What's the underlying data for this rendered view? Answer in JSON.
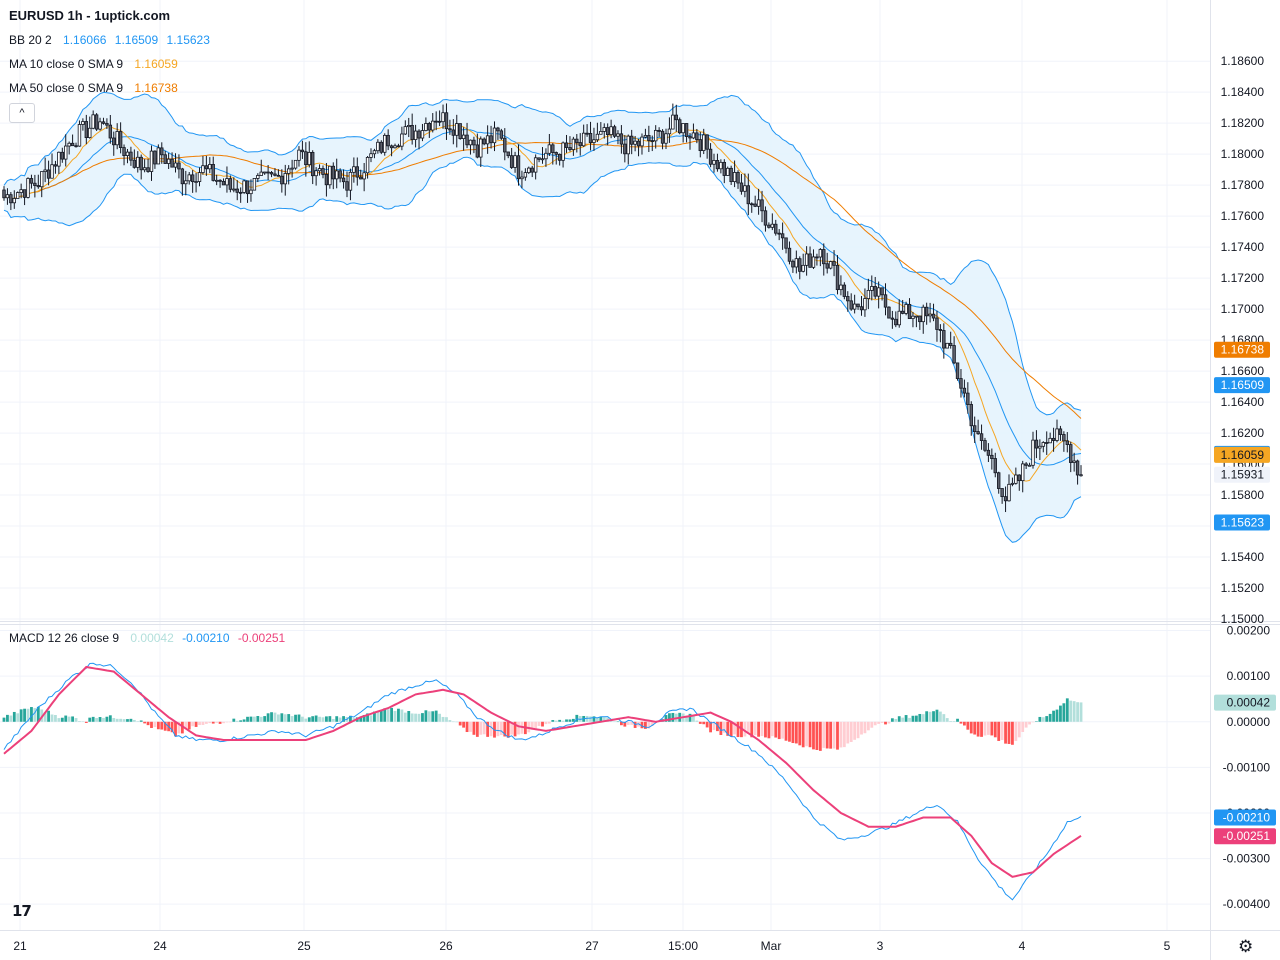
{
  "header": {
    "title": "EURUSD 1h - 1uptick.com"
  },
  "legends": {
    "bb": {
      "label": "BB 20 2",
      "v1": "1.16066",
      "v2": "1.16509",
      "v3": "1.15623",
      "color": "#2196f3"
    },
    "ma10": {
      "label": "MA 10 close 0 SMA 9",
      "value": "1.16059",
      "color": "#f5a623"
    },
    "ma50": {
      "label": "MA 50 close 0 SMA 9",
      "value": "1.16738",
      "color": "#ef7d00"
    },
    "macd": {
      "label": "MACD 12 26 close 9",
      "hist": "0.00042",
      "macd": "-0.00210",
      "signal": "-0.00251"
    }
  },
  "ui": {
    "collapse_icon": "^",
    "logo_text": "17",
    "settings_icon": "⚙"
  },
  "chart_data": [
    {
      "type": "candlestick",
      "symbol": "EURUSD",
      "interval": "1h",
      "ylim": [
        1.15,
        1.187
      ],
      "y_ticks": [
        "1.18600",
        "1.18400",
        "1.18200",
        "1.18000",
        "1.17800",
        "1.17600",
        "1.17400",
        "1.17200",
        "1.17000",
        "1.16800",
        "1.16600",
        "1.16400",
        "1.16200",
        "1.16000",
        "1.15800",
        "1.15600",
        "1.15400",
        "1.15200",
        "1.15000"
      ],
      "x_labels": [
        "21",
        "24",
        "25",
        "26",
        "27",
        "15:00",
        "Mar",
        "3",
        "4",
        "5"
      ],
      "price_key_points": [
        [
          0,
          1.1772
        ],
        [
          10,
          1.1782
        ],
        [
          20,
          1.181
        ],
        [
          28,
          1.1822
        ],
        [
          34,
          1.1805
        ],
        [
          40,
          1.1792
        ],
        [
          46,
          1.18
        ],
        [
          52,
          1.1786
        ],
        [
          58,
          1.179
        ],
        [
          66,
          1.1778
        ],
        [
          72,
          1.178
        ],
        [
          80,
          1.1785
        ],
        [
          86,
          1.18
        ],
        [
          94,
          1.1786
        ],
        [
          100,
          1.1782
        ],
        [
          106,
          1.1795
        ],
        [
          112,
          1.181
        ],
        [
          120,
          1.1815
        ],
        [
          126,
          1.1825
        ],
        [
          132,
          1.1818
        ],
        [
          138,
          1.1805
        ],
        [
          144,
          1.1812
        ],
        [
          150,
          1.179
        ],
        [
          158,
          1.18
        ],
        [
          164,
          1.1802
        ],
        [
          170,
          1.1808
        ],
        [
          176,
          1.1812
        ],
        [
          182,
          1.1805
        ],
        [
          190,
          1.181
        ],
        [
          196,
          1.182
        ],
        [
          202,
          1.1812
        ],
        [
          206,
          1.18
        ],
        [
          210,
          1.179
        ],
        [
          216,
          1.1775
        ],
        [
          220,
          1.1765
        ],
        [
          226,
          1.175
        ],
        [
          232,
          1.1725
        ],
        [
          238,
          1.174
        ],
        [
          244,
          1.1715
        ],
        [
          248,
          1.17
        ],
        [
          254,
          1.171
        ],
        [
          260,
          1.1695
        ],
        [
          266,
          1.1698
        ],
        [
          272,
          1.169
        ],
        [
          276,
          1.167
        ],
        [
          280,
          1.1645
        ],
        [
          284,
          1.1615
        ],
        [
          288,
          1.1602
        ],
        [
          292,
          1.1578
        ],
        [
          296,
          1.159
        ],
        [
          300,
          1.161
        ],
        [
          304,
          1.162
        ],
        [
          310,
          1.1612
        ],
        [
          314,
          1.1593
        ]
      ],
      "price_tags": [
        {
          "value": "1.16738",
          "color": "#ef7d00",
          "text_color": "#ffffff"
        },
        {
          "value": "1.16509",
          "color": "#2196f3",
          "text_color": "#ffffff"
        },
        {
          "value": "1.16066",
          "color": "#2196f3",
          "text_color": "#ffffff"
        },
        {
          "value": "1.16059",
          "color": "#f5a623",
          "text_color": "#131722"
        },
        {
          "value": "1.15931",
          "color": "#f0f3fa",
          "text_color": "#131722"
        },
        {
          "value": "1.15623",
          "color": "#2196f3",
          "text_color": "#ffffff"
        }
      ],
      "series": [
        {
          "name": "BB 20 2",
          "color": "#2196f3",
          "fill": "#e3f2fd"
        },
        {
          "name": "MA 10 close 0 SMA 9",
          "color": "#f5a623"
        },
        {
          "name": "MA 50 close 0 SMA 9",
          "color": "#ef7d00"
        }
      ]
    },
    {
      "type": "macd",
      "ylim": [
        -0.0042,
        0.0021
      ],
      "y_ticks": [
        "0.00200",
        "0.00100",
        "0.00000",
        "-0.00100",
        "-0.00200",
        "-0.00300",
        "-0.00400"
      ],
      "macd_key_points": [
        [
          0,
          -0.0006
        ],
        [
          10,
          0.0003
        ],
        [
          20,
          0.001
        ],
        [
          26,
          0.0013
        ],
        [
          32,
          0.0012
        ],
        [
          38,
          0.0008
        ],
        [
          44,
          0.0002
        ],
        [
          50,
          -0.0003
        ],
        [
          56,
          -0.0004
        ],
        [
          64,
          -0.0004
        ],
        [
          72,
          -0.0003
        ],
        [
          80,
          -0.0002
        ],
        [
          88,
          -0.0003
        ],
        [
          96,
          -0.0001
        ],
        [
          104,
          0.0002
        ],
        [
          112,
          0.0006
        ],
        [
          120,
          0.0008
        ],
        [
          126,
          0.0009
        ],
        [
          132,
          0.0006
        ],
        [
          138,
          0.0001
        ],
        [
          144,
          -0.0002
        ],
        [
          150,
          -0.0004
        ],
        [
          156,
          -0.0003
        ],
        [
          162,
          -0.0001
        ],
        [
          170,
          0.0001
        ],
        [
          176,
          0.0001
        ],
        [
          182,
          0.0
        ],
        [
          188,
          -0.0001
        ],
        [
          194,
          0.0002
        ],
        [
          200,
          0.0003
        ],
        [
          206,
          0.0
        ],
        [
          212,
          -0.0003
        ],
        [
          220,
          -0.0007
        ],
        [
          228,
          -0.0013
        ],
        [
          236,
          -0.0021
        ],
        [
          244,
          -0.0026
        ],
        [
          250,
          -0.0025
        ],
        [
          258,
          -0.0023
        ],
        [
          266,
          -0.002
        ],
        [
          272,
          -0.0018
        ],
        [
          278,
          -0.0022
        ],
        [
          284,
          -0.003
        ],
        [
          290,
          -0.0036
        ],
        [
          294,
          -0.0039
        ],
        [
          298,
          -0.0035
        ],
        [
          304,
          -0.0029
        ],
        [
          310,
          -0.0022
        ],
        [
          314,
          -0.0021
        ]
      ],
      "signal_key_points": [
        [
          0,
          -0.0007
        ],
        [
          8,
          -0.0002
        ],
        [
          16,
          0.0006
        ],
        [
          24,
          0.0012
        ],
        [
          32,
          0.0011
        ],
        [
          40,
          0.0006
        ],
        [
          48,
          0.0001
        ],
        [
          56,
          -0.0003
        ],
        [
          64,
          -0.0004
        ],
        [
          72,
          -0.0004
        ],
        [
          80,
          -0.0004
        ],
        [
          88,
          -0.0004
        ],
        [
          96,
          -0.0002
        ],
        [
          104,
          0.0001
        ],
        [
          112,
          0.0003
        ],
        [
          120,
          0.0006
        ],
        [
          128,
          0.0007
        ],
        [
          134,
          0.0006
        ],
        [
          142,
          0.0002
        ],
        [
          150,
          -0.0001
        ],
        [
          158,
          -0.0002
        ],
        [
          166,
          -0.0001
        ],
        [
          174,
          0.0
        ],
        [
          182,
          0.0001
        ],
        [
          190,
          0.0
        ],
        [
          198,
          0.0001
        ],
        [
          206,
          0.0002
        ],
        [
          212,
          0.0
        ],
        [
          220,
          -0.0004
        ],
        [
          228,
          -0.0009
        ],
        [
          236,
          -0.0015
        ],
        [
          244,
          -0.002
        ],
        [
          252,
          -0.0023
        ],
        [
          260,
          -0.0023
        ],
        [
          268,
          -0.0021
        ],
        [
          276,
          -0.0021
        ],
        [
          282,
          -0.0025
        ],
        [
          288,
          -0.0031
        ],
        [
          294,
          -0.0034
        ],
        [
          300,
          -0.0033
        ],
        [
          306,
          -0.0029
        ],
        [
          314,
          -0.0025
        ]
      ],
      "series": [
        {
          "name": "MACD",
          "color": "#2196f3"
        },
        {
          "name": "Signal",
          "color": "#ec407a"
        },
        {
          "name": "Histogram",
          "colors": [
            "#26a69a",
            "#b2dfdb",
            "#ff5252",
            "#ffcdd2"
          ]
        }
      ],
      "value_tags": [
        {
          "value": "0.00042",
          "color": "#b2dfdb",
          "text_color": "#131722"
        },
        {
          "value": "-0.00210",
          "color": "#2196f3",
          "text_color": "#ffffff"
        },
        {
          "value": "-0.00251",
          "color": "#ec407a",
          "text_color": "#ffffff"
        }
      ]
    }
  ]
}
